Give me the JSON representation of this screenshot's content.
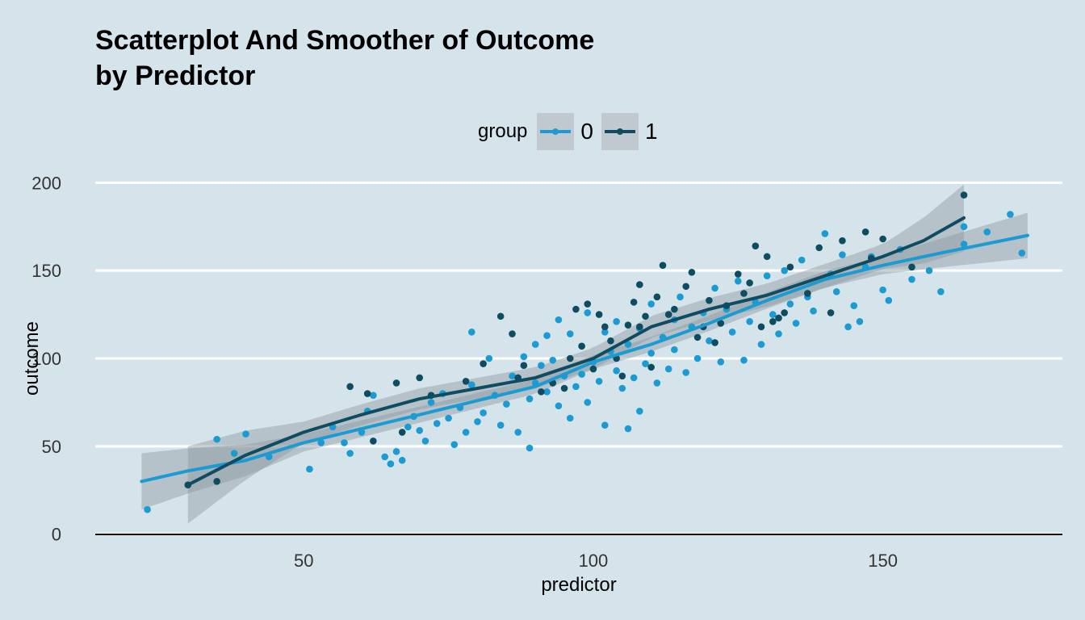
{
  "chart_data": {
    "type": "scatter",
    "title": [
      "Scatterplot And Smoother of Outcome",
      "by Predictor"
    ],
    "xlabel": "predictor",
    "ylabel": "outcome",
    "xlim": [
      14,
      181
    ],
    "ylim": [
      -2,
      202
    ],
    "x_ticks": [
      "50",
      "100",
      "150"
    ],
    "y_ticks": [
      "0",
      "50",
      "100",
      "150",
      "200"
    ],
    "legend": {
      "title": "group",
      "position": "top",
      "entries": [
        "0",
        "1"
      ]
    },
    "grid": "horizontal-major",
    "colors": {
      "background": "#d5e4eb",
      "group_0": "#1b9bd1",
      "group_1": "#0f4c61",
      "ribbon": "#8f9a9f",
      "grid": "#ffffff"
    },
    "series": [
      {
        "name": "0",
        "smoother": [
          [
            22,
            30
          ],
          [
            30,
            36
          ],
          [
            40,
            42
          ],
          [
            50,
            52
          ],
          [
            60,
            60
          ],
          [
            70,
            68
          ],
          [
            80,
            76
          ],
          [
            90,
            84
          ],
          [
            100,
            98
          ],
          [
            110,
            108
          ],
          [
            120,
            120
          ],
          [
            130,
            133
          ],
          [
            140,
            145
          ],
          [
            150,
            153
          ],
          [
            160,
            160
          ],
          [
            175,
            170
          ]
        ],
        "ribbon_halfwidth": [
          [
            22,
            16
          ],
          [
            50,
            5
          ],
          [
            100,
            4
          ],
          [
            150,
            5
          ],
          [
            175,
            13
          ]
        ],
        "points": [
          [
            23,
            14
          ],
          [
            35,
            54
          ],
          [
            38,
            46
          ],
          [
            40,
            57
          ],
          [
            44,
            44
          ],
          [
            51,
            37
          ],
          [
            53,
            52
          ],
          [
            55,
            61
          ],
          [
            57,
            52
          ],
          [
            58,
            46
          ],
          [
            60,
            58
          ],
          [
            61,
            70
          ],
          [
            62,
            79
          ],
          [
            64,
            44
          ],
          [
            65,
            40
          ],
          [
            66,
            47
          ],
          [
            67,
            42
          ],
          [
            68,
            61
          ],
          [
            69,
            67
          ],
          [
            70,
            59
          ],
          [
            71,
            53
          ],
          [
            72,
            75
          ],
          [
            73,
            63
          ],
          [
            74,
            80
          ],
          [
            75,
            66
          ],
          [
            76,
            51
          ],
          [
            77,
            72
          ],
          [
            78,
            58
          ],
          [
            79,
            115
          ],
          [
            79,
            85
          ],
          [
            80,
            64
          ],
          [
            81,
            69
          ],
          [
            82,
            100
          ],
          [
            83,
            79
          ],
          [
            84,
            62
          ],
          [
            85,
            74
          ],
          [
            86,
            90
          ],
          [
            87,
            58
          ],
          [
            88,
            101
          ],
          [
            89,
            49
          ],
          [
            89,
            77
          ],
          [
            90,
            108
          ],
          [
            90,
            86
          ],
          [
            91,
            96
          ],
          [
            92,
            113
          ],
          [
            92,
            81
          ],
          [
            93,
            99
          ],
          [
            94,
            122
          ],
          [
            94,
            73
          ],
          [
            95,
            90
          ],
          [
            96,
            114
          ],
          [
            96,
            66
          ],
          [
            97,
            84
          ],
          [
            98,
            107
          ],
          [
            98,
            91
          ],
          [
            99,
            126
          ],
          [
            99,
            75
          ],
          [
            100,
            98
          ],
          [
            101,
            87
          ],
          [
            102,
            115
          ],
          [
            102,
            62
          ],
          [
            103,
            104
          ],
          [
            104,
            93
          ],
          [
            104,
            121
          ],
          [
            105,
            83
          ],
          [
            106,
            60
          ],
          [
            106,
            108
          ],
          [
            107,
            89
          ],
          [
            108,
            117
          ],
          [
            108,
            70
          ],
          [
            109,
            97
          ],
          [
            110,
            131
          ],
          [
            110,
            103
          ],
          [
            111,
            86
          ],
          [
            112,
            112
          ],
          [
            113,
            94
          ],
          [
            114,
            122
          ],
          [
            114,
            105
          ],
          [
            115,
            135
          ],
          [
            116,
            92
          ],
          [
            117,
            118
          ],
          [
            118,
            100
          ],
          [
            119,
            126
          ],
          [
            120,
            110
          ],
          [
            121,
            140
          ],
          [
            122,
            98
          ],
          [
            123,
            128
          ],
          [
            124,
            115
          ],
          [
            125,
            144
          ],
          [
            126,
            99
          ],
          [
            127,
            121
          ],
          [
            128,
            132
          ],
          [
            129,
            108
          ],
          [
            130,
            147
          ],
          [
            131,
            125
          ],
          [
            132,
            114
          ],
          [
            133,
            150
          ],
          [
            134,
            131
          ],
          [
            135,
            120
          ],
          [
            136,
            156
          ],
          [
            137,
            135
          ],
          [
            138,
            127
          ],
          [
            140,
            171
          ],
          [
            141,
            148
          ],
          [
            142,
            138
          ],
          [
            143,
            159
          ],
          [
            144,
            118
          ],
          [
            145,
            130
          ],
          [
            146,
            121
          ],
          [
            147,
            152
          ],
          [
            148,
            158
          ],
          [
            150,
            139
          ],
          [
            151,
            133
          ],
          [
            153,
            162
          ],
          [
            155,
            145
          ],
          [
            158,
            150
          ],
          [
            160,
            138
          ],
          [
            164,
            175
          ],
          [
            164,
            165
          ],
          [
            168,
            172
          ],
          [
            172,
            182
          ],
          [
            174,
            160
          ]
        ]
      },
      {
        "name": "1",
        "smoother": [
          [
            30,
            28
          ],
          [
            40,
            45
          ],
          [
            50,
            58
          ],
          [
            60,
            68
          ],
          [
            70,
            77
          ],
          [
            80,
            83
          ],
          [
            90,
            89
          ],
          [
            100,
            100
          ],
          [
            110,
            118
          ],
          [
            120,
            128
          ],
          [
            130,
            136
          ],
          [
            140,
            147
          ],
          [
            150,
            158
          ],
          [
            157,
            167
          ],
          [
            164,
            180
          ]
        ],
        "ribbon_halfwidth": [
          [
            30,
            22
          ],
          [
            50,
            6
          ],
          [
            100,
            6
          ],
          [
            150,
            7
          ],
          [
            164,
            19
          ]
        ],
        "points": [
          [
            30,
            28
          ],
          [
            35,
            30
          ],
          [
            58,
            84
          ],
          [
            61,
            80
          ],
          [
            62,
            53
          ],
          [
            66,
            86
          ],
          [
            67,
            58
          ],
          [
            70,
            89
          ],
          [
            72,
            79
          ],
          [
            78,
            87
          ],
          [
            81,
            97
          ],
          [
            84,
            124
          ],
          [
            86,
            114
          ],
          [
            87,
            89
          ],
          [
            88,
            96
          ],
          [
            91,
            81
          ],
          [
            93,
            86
          ],
          [
            95,
            83
          ],
          [
            96,
            100
          ],
          [
            97,
            128
          ],
          [
            98,
            107
          ],
          [
            99,
            131
          ],
          [
            100,
            94
          ],
          [
            101,
            125
          ],
          [
            102,
            118
          ],
          [
            103,
            110
          ],
          [
            104,
            100
          ],
          [
            105,
            90
          ],
          [
            106,
            119
          ],
          [
            107,
            132
          ],
          [
            108,
            142
          ],
          [
            108,
            118
          ],
          [
            109,
            124
          ],
          [
            110,
            95
          ],
          [
            111,
            135
          ],
          [
            112,
            153
          ],
          [
            113,
            125
          ],
          [
            114,
            128
          ],
          [
            116,
            141
          ],
          [
            117,
            149
          ],
          [
            118,
            112
          ],
          [
            119,
            118
          ],
          [
            120,
            133
          ],
          [
            121,
            109
          ],
          [
            122,
            120
          ],
          [
            123,
            130
          ],
          [
            125,
            148
          ],
          [
            126,
            137
          ],
          [
            127,
            143
          ],
          [
            128,
            164
          ],
          [
            129,
            118
          ],
          [
            130,
            158
          ],
          [
            131,
            121
          ],
          [
            132,
            123
          ],
          [
            133,
            126
          ],
          [
            134,
            152
          ],
          [
            137,
            137
          ],
          [
            139,
            163
          ],
          [
            141,
            126
          ],
          [
            143,
            167
          ],
          [
            147,
            172
          ],
          [
            148,
            157
          ],
          [
            150,
            168
          ],
          [
            155,
            152
          ],
          [
            164,
            193
          ]
        ]
      }
    ]
  }
}
